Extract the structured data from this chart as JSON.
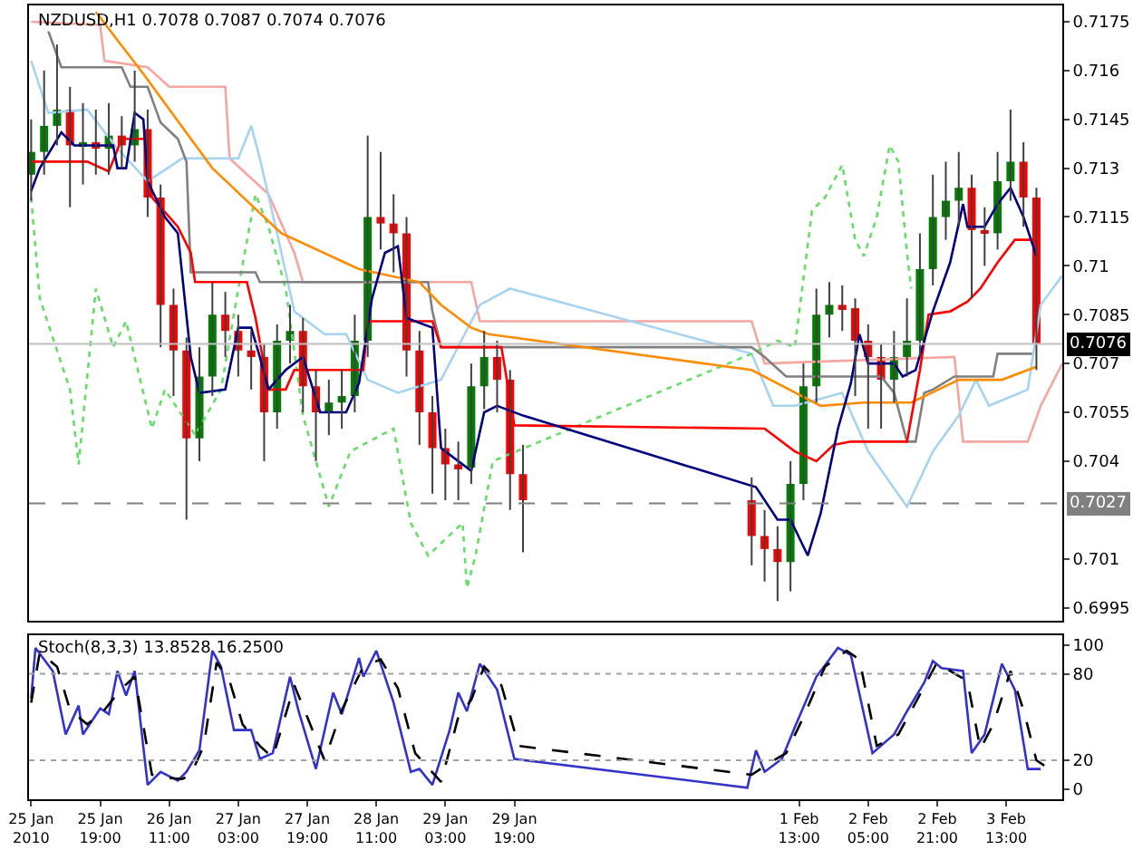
{
  "chart_data": [
    {
      "type": "candlestick",
      "title": "NZDUSD,H1 0.7078 0.7087 0.7074 0.7076",
      "x": [
        "2010-01-25T03:00",
        "2010-01-25T06:00",
        "2010-01-25T09:00",
        "2010-01-25T12:00",
        "2010-01-25T15:00",
        "2010-01-25T18:00",
        "2010-01-25T21:00",
        "2010-01-26T00:00",
        "2010-01-26T03:00",
        "2010-01-26T06:00",
        "2010-01-26T09:00",
        "2010-01-26T12:00",
        "2010-01-26T15:00",
        "2010-01-26T18:00",
        "2010-01-26T21:00",
        "2010-01-27T00:00",
        "2010-01-27T03:00",
        "2010-01-27T06:00",
        "2010-01-27T09:00",
        "2010-01-27T12:00",
        "2010-01-27T15:00",
        "2010-01-27T18:00",
        "2010-01-27T21:00",
        "2010-01-28T00:00",
        "2010-01-28T03:00",
        "2010-01-28T06:00",
        "2010-01-28T09:00",
        "2010-01-28T12:00",
        "2010-01-28T15:00",
        "2010-01-28T18:00",
        "2010-01-28T21:00",
        "2010-01-29T00:00",
        "2010-01-29T03:00",
        "2010-01-29T06:00",
        "2010-01-29T09:00",
        "2010-01-29T12:00",
        "2010-01-29T15:00",
        "2010-01-29T18:00",
        "2010-01-29T21:00",
        "2010-02-01T02:00",
        "2010-02-01T05:00",
        "2010-02-01T08:00",
        "2010-02-01T11:00",
        "2010-02-01T14:00",
        "2010-02-01T17:00",
        "2010-02-01T20:00",
        "2010-02-01T23:00",
        "2010-02-02T02:00",
        "2010-02-02T05:00",
        "2010-02-02T08:00",
        "2010-02-02T11:00",
        "2010-02-02T14:00",
        "2010-02-02T17:00",
        "2010-02-02T20:00",
        "2010-02-02T23:00",
        "2010-02-03T02:00",
        "2010-02-03T05:00",
        "2010-02-03T08:00",
        "2010-02-03T11:00",
        "2010-02-03T14:00",
        "2010-02-03T17:00",
        "2010-02-03T20:00"
      ],
      "ohlc": [
        [
          0.7128,
          0.7145,
          0.712,
          0.7135
        ],
        [
          0.7135,
          0.716,
          0.7128,
          0.7143
        ],
        [
          0.7143,
          0.7168,
          0.7137,
          0.7148
        ],
        [
          0.7148,
          0.7155,
          0.7118,
          0.7137
        ],
        [
          0.7137,
          0.715,
          0.7125,
          0.7138
        ],
        [
          0.7138,
          0.7148,
          0.7128,
          0.7136
        ],
        [
          0.7136,
          0.715,
          0.7128,
          0.714
        ],
        [
          0.714,
          0.7146,
          0.713,
          0.7137
        ],
        [
          0.7137,
          0.716,
          0.7132,
          0.7142
        ],
        [
          0.7142,
          0.7148,
          0.7115,
          0.7121
        ],
        [
          0.7121,
          0.7125,
          0.7075,
          0.7088
        ],
        [
          0.7088,
          0.7093,
          0.706,
          0.7074
        ],
        [
          0.7074,
          0.7078,
          0.7022,
          0.7047
        ],
        [
          0.7047,
          0.7075,
          0.704,
          0.7066
        ],
        [
          0.7066,
          0.7095,
          0.706,
          0.7085
        ],
        [
          0.7085,
          0.7092,
          0.7072,
          0.708
        ],
        [
          0.708,
          0.7085,
          0.7066,
          0.7074
        ],
        [
          0.7074,
          0.708,
          0.7062,
          0.7072
        ],
        [
          0.7072,
          0.7076,
          0.704,
          0.7055
        ],
        [
          0.7055,
          0.7082,
          0.705,
          0.7077
        ],
        [
          0.7077,
          0.7088,
          0.707,
          0.708
        ],
        [
          0.708,
          0.7084,
          0.7055,
          0.7063
        ],
        [
          0.7063,
          0.7068,
          0.704,
          0.7055
        ],
        [
          0.7055,
          0.7065,
          0.7048,
          0.7058
        ],
        [
          0.7058,
          0.7068,
          0.705,
          0.706
        ],
        [
          0.706,
          0.7085,
          0.7055,
          0.7077
        ],
        [
          0.7077,
          0.714,
          0.7072,
          0.7115
        ],
        [
          0.7115,
          0.7135,
          0.7105,
          0.7113
        ],
        [
          0.7113,
          0.7122,
          0.7098,
          0.711
        ],
        [
          0.711,
          0.7115,
          0.7066,
          0.7074
        ],
        [
          0.7074,
          0.708,
          0.7045,
          0.7055
        ],
        [
          0.7055,
          0.706,
          0.703,
          0.7044
        ],
        [
          0.7044,
          0.705,
          0.7028,
          0.7039
        ],
        [
          0.7039,
          0.7046,
          0.7028,
          0.7038
        ],
        [
          0.7038,
          0.707,
          0.7033,
          0.7063
        ],
        [
          0.7063,
          0.708,
          0.7056,
          0.7072
        ],
        [
          0.7072,
          0.7077,
          0.7055,
          0.7065
        ],
        [
          0.7065,
          0.7068,
          0.7025,
          0.7036
        ],
        [
          0.7036,
          0.7045,
          0.7012,
          0.7028
        ],
        [
          0.7028,
          0.7035,
          0.7008,
          0.7017
        ],
        [
          0.7017,
          0.7025,
          0.7003,
          0.7013
        ],
        [
          0.7013,
          0.702,
          0.6997,
          0.7009
        ],
        [
          0.7009,
          0.704,
          0.7,
          0.7033
        ],
        [
          0.7033,
          0.707,
          0.7028,
          0.7063
        ],
        [
          0.7063,
          0.7093,
          0.7058,
          0.7085
        ],
        [
          0.7085,
          0.7095,
          0.7078,
          0.7088
        ],
        [
          0.7088,
          0.7094,
          0.708,
          0.7087
        ],
        [
          0.7087,
          0.709,
          0.706,
          0.7077
        ],
        [
          0.7077,
          0.7082,
          0.705,
          0.7072
        ],
        [
          0.7072,
          0.7076,
          0.705,
          0.7065
        ],
        [
          0.7065,
          0.708,
          0.7058,
          0.7072
        ],
        [
          0.7072,
          0.709,
          0.7066,
          0.7077
        ],
        [
          0.7077,
          0.711,
          0.7072,
          0.7099
        ],
        [
          0.7099,
          0.7128,
          0.7094,
          0.7115
        ],
        [
          0.7115,
          0.7132,
          0.7108,
          0.712
        ],
        [
          0.712,
          0.7135,
          0.7112,
          0.7124
        ],
        [
          0.7124,
          0.7128,
          0.709,
          0.7111
        ],
        [
          0.7111,
          0.7118,
          0.71,
          0.711
        ],
        [
          0.711,
          0.7135,
          0.7105,
          0.7126
        ],
        [
          0.7126,
          0.7148,
          0.712,
          0.7132
        ],
        [
          0.7132,
          0.7138,
          0.7112,
          0.7121
        ],
        [
          0.7121,
          0.7124,
          0.7068,
          0.7076
        ]
      ],
      "colors": [
        "#008000",
        "#008000",
        "#008000",
        "#ff0000",
        "#008000",
        "#ff0000",
        "#008000",
        "#ff0000",
        "#008000",
        "#ff0000",
        "#ff0000",
        "#ff0000",
        "#ff0000",
        "#008000",
        "#008000",
        "#ff0000",
        "#ff0000",
        "#ff0000",
        "#ff0000",
        "#008000",
        "#008000",
        "#ff0000",
        "#ff0000",
        "#008000",
        "#008000",
        "#008000",
        "#008000",
        "#ff0000",
        "#ff0000",
        "#ff0000",
        "#ff0000",
        "#ff0000",
        "#ff0000",
        "#ff0000",
        "#008000",
        "#008000",
        "#ff0000",
        "#ff0000",
        "#ff0000",
        "#ff0000",
        "#ff0000",
        "#ff0000",
        "#008000",
        "#008000",
        "#008000",
        "#008000",
        "#ff0000",
        "#ff0000",
        "#ff0000",
        "#ff0000",
        "#008000",
        "#008000",
        "#008000",
        "#008000",
        "#008000",
        "#008000",
        "#ff0000",
        "#ff0000",
        "#008000",
        "#008000",
        "#ff0000",
        "#ff0000"
      ],
      "series": [
        {
          "type": "line",
          "color": "#f4a6a0",
          "x": [
            "2010-01-25T03:00",
            "2010-01-25T19:00",
            "2010-01-25T20:00",
            "2010-01-26T06:00",
            "2010-01-26T11:00",
            "2010-01-27T00:00",
            "2010-01-27T01:00",
            "2010-01-27T10:00",
            "2010-01-27T16:00",
            "2010-01-27T18:00",
            "2010-01-29T09:00",
            "2010-01-29T11:00",
            "2010-02-01T02:00",
            "2010-02-01T05:00",
            "2010-02-03T01:00",
            "2010-02-03T03:00",
            "2010-02-03T18:00",
            "2010-02-03T21:00",
            "2010-02-04T02:00"
          ],
          "values": [
            0.7175,
            0.7174,
            0.7163,
            0.7161,
            0.7155,
            0.7155,
            0.7133,
            0.7122,
            0.7104,
            0.7095,
            0.7095,
            0.7083,
            0.7083,
            0.707,
            0.7072,
            0.7046,
            0.7046,
            0.7057,
            0.707
          ]
        },
        {
          "type": "line",
          "color": "#a6d4f0",
          "x": [
            "2010-01-25T03:00",
            "2010-01-25T07:00",
            "2010-01-25T16:00",
            "2010-01-25T23:00",
            "2010-01-26T06:00",
            "2010-01-26T14:00",
            "2010-01-27T03:00",
            "2010-01-27T06:00",
            "2010-01-27T08:00",
            "2010-01-27T12:00",
            "2010-01-27T16:00",
            "2010-01-27T23:00",
            "2010-01-28T04:00",
            "2010-01-28T09:00",
            "2010-01-28T16:00",
            "2010-01-29T02:00",
            "2010-01-29T11:00",
            "2010-01-29T18:00",
            "2010-02-01T02:00",
            "2010-02-01T07:00",
            "2010-02-01T12:00",
            "2010-02-01T23:00",
            "2010-02-02T05:00",
            "2010-02-02T14:00",
            "2010-02-02T20:00",
            "2010-02-03T02:00",
            "2010-02-03T06:00",
            "2010-02-03T09:00",
            "2010-02-03T18:00",
            "2010-02-03T21:00",
            "2010-02-04T02:00"
          ],
          "values": [
            0.7163,
            0.7147,
            0.7148,
            0.7136,
            0.7126,
            0.7133,
            0.7133,
            0.7143,
            0.7133,
            0.711,
            0.7086,
            0.7079,
            0.7079,
            0.7065,
            0.7061,
            0.7065,
            0.7088,
            0.7093,
            0.7073,
            0.7057,
            0.7057,
            0.7061,
            0.7043,
            0.7026,
            0.7043,
            0.7054,
            0.7065,
            0.7057,
            0.7062,
            0.7088,
            0.7097
          ]
        },
        {
          "type": "line",
          "color": "#66dd66",
          "line_style": "dotted",
          "x": [
            "2010-01-25T03:00",
            "2010-01-25T05:00",
            "2010-01-25T12:00",
            "2010-01-25T14:00",
            "2010-01-25T18:00",
            "2010-01-25T22:00",
            "2010-01-26T01:00",
            "2010-01-26T07:00",
            "2010-01-26T10:00",
            "2010-01-26T17:00",
            "2010-01-26T23:00",
            "2010-01-27T03:00",
            "2010-01-27T07:00",
            "2010-01-27T10:00",
            "2010-01-27T14:00",
            "2010-01-27T18:00",
            "2010-01-28T00:00",
            "2010-01-28T05:00",
            "2010-01-28T15:00",
            "2010-01-28T19:00",
            "2010-01-28T23:00",
            "2010-01-29T07:00",
            "2010-01-29T08:00",
            "2010-01-29T10:00",
            "2010-01-29T14:00",
            "2010-02-01T02:00",
            "2010-02-01T08:00",
            "2010-02-01T12:00",
            "2010-02-01T16:00",
            "2010-02-01T19:00",
            "2010-02-01T23:00",
            "2010-02-02T02:00",
            "2010-02-02T04:00",
            "2010-02-02T07:00",
            "2010-02-02T10:00",
            "2010-02-02T12:00",
            "2010-02-02T14:00",
            "2010-02-02T15:00"
          ],
          "values": [
            0.7121,
            0.709,
            0.7062,
            0.7039,
            0.7093,
            0.7075,
            0.7083,
            0.705,
            0.7062,
            0.7048,
            0.7062,
            0.7093,
            0.7122,
            0.7112,
            0.7093,
            0.7054,
            0.7026,
            0.7043,
            0.705,
            0.7021,
            0.7011,
            0.7021,
            0.7001,
            0.7011,
            0.704,
            0.7073,
            0.7077,
            0.7075,
            0.7117,
            0.7121,
            0.7131,
            0.7108,
            0.7103,
            0.7115,
            0.7137,
            0.7132,
            0.7104,
            0.7093
          ]
        },
        {
          "type": "line",
          "color": "#808080",
          "x": [
            "2010-01-25T07:00",
            "2010-01-25T10:00",
            "2010-01-26T00:00",
            "2010-01-26T02:00",
            "2010-01-26T06:00",
            "2010-01-26T09:00",
            "2010-01-26T13:00",
            "2010-01-26T15:00",
            "2010-01-26T16:00",
            "2010-01-27T07:00",
            "2010-01-27T08:00",
            "2010-01-28T23:00",
            "2010-01-29T00:00",
            "2010-01-29T02:00",
            "2010-02-01T02:00",
            "2010-02-01T05:00",
            "2010-02-01T10:00",
            "2010-02-02T08:00",
            "2010-02-02T11:00",
            "2010-02-02T14:00",
            "2010-02-02T16:00",
            "2010-02-02T18:00",
            "2010-02-02T20:00",
            "2010-02-03T01:00",
            "2010-02-03T10:00",
            "2010-02-03T11:00",
            "2010-02-03T19:00"
          ],
          "values": [
            0.7172,
            0.7161,
            0.7161,
            0.7155,
            0.7155,
            0.7144,
            0.7139,
            0.7132,
            0.7098,
            0.7098,
            0.7095,
            0.7095,
            0.7086,
            0.7075,
            0.7075,
            0.7072,
            0.7066,
            0.7066,
            0.7061,
            0.7046,
            0.7046,
            0.7061,
            0.7062,
            0.7066,
            0.7066,
            0.7073,
            0.7073
          ]
        },
        {
          "type": "line",
          "color": "#ff8c00",
          "x": [
            "2010-01-25T18:00",
            "2010-01-26T05:00",
            "2010-01-26T21:00",
            "2010-01-27T13:00",
            "2010-01-28T07:00",
            "2010-01-28T21:00",
            "2010-01-29T02:00",
            "2010-01-29T09:00",
            "2010-01-29T13:00",
            "2010-02-01T02:00",
            "2010-02-01T18:00",
            "2010-02-02T04:00",
            "2010-02-02T15:00",
            "2010-02-03T02:00",
            "2010-02-03T12:00",
            "2010-02-03T20:00"
          ],
          "values": [
            0.7178,
            0.7159,
            0.713,
            0.711,
            0.7099,
            0.7095,
            0.7088,
            0.7081,
            0.7079,
            0.7068,
            0.7057,
            0.7058,
            0.7058,
            0.7065,
            0.7065,
            0.7069
          ]
        },
        {
          "type": "line",
          "color": "#ff0000",
          "x": [
            "2010-01-25T03:00",
            "2010-01-25T16:00",
            "2010-01-25T21:00",
            "2010-01-26T00:00",
            "2010-01-26T06:00",
            "2010-01-26T07:00",
            "2010-01-26T13:00",
            "2010-01-26T16:00",
            "2010-01-26T17:00",
            "2010-01-27T05:00",
            "2010-01-27T07:00",
            "2010-01-27T10:00",
            "2010-01-27T14:00",
            "2010-01-27T16:00",
            "2010-01-28T08:00",
            "2010-01-28T09:00",
            "2010-01-29T00:00",
            "2010-01-29T02:00",
            "2010-01-29T16:00",
            "2010-01-29T19:00",
            "2010-02-01T05:00",
            "2010-02-01T12:00",
            "2010-02-01T17:00",
            "2010-02-01T21:00",
            "2010-02-02T01:00",
            "2010-02-02T14:00",
            "2010-02-02T17:00",
            "2010-02-02T19:00",
            "2010-02-03T00:00",
            "2010-02-03T04:00",
            "2010-02-03T07:00",
            "2010-02-03T11:00",
            "2010-02-03T15:00",
            "2010-02-03T20:00"
          ],
          "values": [
            0.7132,
            0.7132,
            0.7129,
            0.7139,
            0.7139,
            0.7121,
            0.7112,
            0.7104,
            0.7095,
            0.7095,
            0.7084,
            0.7062,
            0.7062,
            0.7068,
            0.7068,
            0.7083,
            0.7083,
            0.7075,
            0.7075,
            0.7051,
            0.705,
            0.7043,
            0.704,
            0.7045,
            0.7046,
            0.7046,
            0.7068,
            0.7085,
            0.7086,
            0.7089,
            0.7093,
            0.7101,
            0.7108,
            0.7108
          ]
        },
        {
          "type": "line",
          "color": "#000080",
          "x": [
            "2010-01-25T03:00",
            "2010-01-25T05:00",
            "2010-01-25T10:00",
            "2010-01-25T13:00",
            "2010-01-25T22:00",
            "2010-01-25T23:00",
            "2010-01-26T01:00",
            "2010-01-26T03:00",
            "2010-01-26T05:00",
            "2010-01-26T06:00",
            "2010-01-26T10:00",
            "2010-01-26T13:00",
            "2010-01-26T16:00",
            "2010-01-26T18:00",
            "2010-01-27T00:00",
            "2010-01-27T03:00",
            "2010-01-27T06:00",
            "2010-01-27T08:00",
            "2010-01-27T10:00",
            "2010-01-27T14:00",
            "2010-01-27T18:00",
            "2010-01-27T22:00",
            "2010-01-28T04:00",
            "2010-01-28T07:00",
            "2010-01-28T10:00",
            "2010-01-28T13:00",
            "2010-01-28T16:00",
            "2010-01-28T18:00",
            "2010-01-28T20:00",
            "2010-01-29T00:00",
            "2010-01-29T02:00",
            "2010-01-29T06:00",
            "2010-01-29T09:00",
            "2010-01-29T12:00",
            "2010-01-29T15:00",
            "2010-01-29T21:00",
            "2010-02-01T03:00",
            "2010-02-01T08:00",
            "2010-02-01T11:00",
            "2010-02-01T15:00",
            "2010-02-01T18:00",
            "2010-02-01T22:00",
            "2010-02-02T01:00",
            "2010-02-02T03:00",
            "2010-02-02T05:00",
            "2010-02-02T11:00",
            "2010-02-02T13:00",
            "2010-02-02T16:00",
            "2010-02-02T20:00",
            "2010-02-03T00:00",
            "2010-02-03T03:00",
            "2010-02-03T04:00",
            "2010-02-03T08:00",
            "2010-02-03T11:00",
            "2010-02-03T14:00",
            "2010-02-03T17:00",
            "2010-02-03T20:00"
          ],
          "values": [
            0.7123,
            0.713,
            0.7141,
            0.7137,
            0.7137,
            0.713,
            0.713,
            0.7147,
            0.7145,
            0.7126,
            0.7115,
            0.711,
            0.7072,
            0.7061,
            0.7062,
            0.7081,
            0.7081,
            0.7072,
            0.7062,
            0.7068,
            0.7072,
            0.7055,
            0.7055,
            0.7064,
            0.709,
            0.7104,
            0.7106,
            0.7084,
            0.7083,
            0.7081,
            0.7044,
            0.704,
            0.7037,
            0.7055,
            0.7057,
            0.7054,
            0.7032,
            0.7022,
            0.7022,
            0.7011,
            0.7024,
            0.705,
            0.7064,
            0.7079,
            0.707,
            0.707,
            0.7066,
            0.7068,
            0.7086,
            0.7101,
            0.7119,
            0.7112,
            0.7112,
            0.7119,
            0.7124,
            0.7115,
            0.7103
          ]
        }
      ],
      "xlim": [
        "2010-01-25T02:30",
        "2010-02-04T02:00"
      ],
      "ylim": [
        0.6991,
        0.718
      ],
      "yticks": [
        0.6995,
        0.701,
        0.704,
        0.7055,
        0.707,
        0.7085,
        0.71,
        0.7115,
        0.713,
        0.7145,
        0.716,
        0.7175
      ],
      "tick_labels": "y",
      "grid": false,
      "ref_lines": [
        {
          "axis": "y",
          "value": 0.7076,
          "label": "0.7076",
          "color": "#c0c0c0",
          "line_style": "solid"
        },
        {
          "axis": "y",
          "value": 0.7027,
          "label": "0.7027",
          "color": "#808080",
          "line_style": "dashed"
        }
      ]
    },
    {
      "type": "line",
      "title": "Stoch(8,3,3) 13.8528 16.2500",
      "series": [
        {
          "color": "#3333cc",
          "x": [
            "2010-01-25T03:00",
            "2010-01-25T04:00",
            "2010-01-25T08:00",
            "2010-01-25T11:00",
            "2010-01-25T14:00",
            "2010-01-25T15:00",
            "2010-01-25T19:00",
            "2010-01-25T21:00",
            "2010-01-25T23:00",
            "2010-01-26T01:00",
            "2010-01-26T03:00",
            "2010-01-26T06:00",
            "2010-01-26T09:00",
            "2010-01-26T13:00",
            "2010-01-26T15:00",
            "2010-01-26T18:00",
            "2010-01-26T21:00",
            "2010-01-26T23:00",
            "2010-01-27T02:00",
            "2010-01-27T06:00",
            "2010-01-27T08:00",
            "2010-01-27T11:00",
            "2010-01-27T15:00",
            "2010-01-27T17:00",
            "2010-01-27T21:00",
            "2010-01-28T01:00",
            "2010-01-28T03:00",
            "2010-01-28T07:00",
            "2010-01-28T08:00",
            "2010-01-28T11:00",
            "2010-01-28T15:00",
            "2010-01-28T19:00",
            "2010-01-28T21:00",
            "2010-01-29T00:00",
            "2010-01-29T04:00",
            "2010-01-29T06:00",
            "2010-01-29T08:00",
            "2010-01-29T11:00",
            "2010-01-29T15:00",
            "2010-01-29T19:00",
            "2010-02-01T01:00",
            "2010-02-01T03:00",
            "2010-02-01T05:00",
            "2010-02-01T09:00",
            "2010-02-01T12:00",
            "2010-02-01T17:00",
            "2010-02-01T22:00",
            "2010-02-02T01:00",
            "2010-02-02T06:00",
            "2010-02-02T11:00",
            "2010-02-02T14:00",
            "2010-02-02T18:00",
            "2010-02-02T20:00",
            "2010-02-02T22:00",
            "2010-02-03T03:00",
            "2010-02-03T05:00",
            "2010-02-03T08:00",
            "2010-02-03T12:00",
            "2010-02-03T15:00",
            "2010-02-03T18:00",
            "2010-02-03T21:00"
          ],
          "values": [
            63,
            98,
            82,
            38,
            58,
            38,
            56,
            52,
            82,
            65,
            82,
            3,
            12,
            6,
            12,
            27,
            96,
            85,
            41,
            41,
            21,
            25,
            78,
            54,
            14,
            67,
            52,
            91,
            78,
            96,
            60,
            12,
            14,
            3,
            41,
            67,
            54,
            87,
            69,
            21,
            1,
            27,
            12,
            21,
            43,
            78,
            98,
            93,
            25,
            38,
            54,
            74,
            89,
            84,
            82,
            25,
            38,
            87,
            69,
            14,
            14
          ]
        },
        {
          "color": "#000000",
          "line_style": "dashed",
          "x": [
            "2010-01-25T03:00",
            "2010-01-25T05:00",
            "2010-01-25T09:00",
            "2010-01-25T12:00",
            "2010-01-25T16:00",
            "2010-01-25T20:00",
            "2010-01-26T00:00",
            "2010-01-26T03:00",
            "2010-01-26T07:00",
            "2010-01-26T10:00",
            "2010-01-26T14:00",
            "2010-01-26T16:00",
            "2010-01-26T19:00",
            "2010-01-26T22:00",
            "2010-01-27T01:00",
            "2010-01-27T04:00",
            "2010-01-27T08:00",
            "2010-01-27T11:00",
            "2010-01-27T16:00",
            "2010-01-27T19:00",
            "2010-01-27T23:00",
            "2010-01-28T03:00",
            "2010-01-28T08:00",
            "2010-01-28T12:00",
            "2010-01-28T16:00",
            "2010-01-28T20:00",
            "2010-01-28T23:00",
            "2010-01-29T02:00",
            "2010-01-29T06:00",
            "2010-01-29T09:00",
            "2010-01-29T12:00",
            "2010-01-29T16:00",
            "2010-01-29T20:00",
            "2010-02-01T02:00",
            "2010-02-01T06:00",
            "2010-02-01T10:00",
            "2010-02-01T14:00",
            "2010-02-01T19:00",
            "2010-02-02T00:00",
            "2010-02-02T03:00",
            "2010-02-02T07:00",
            "2010-02-02T12:00",
            "2010-02-02T16:00",
            "2010-02-02T21:00",
            "2010-02-03T00:00",
            "2010-02-03T04:00",
            "2010-02-03T07:00",
            "2010-02-03T10:00",
            "2010-02-03T14:00",
            "2010-02-03T17:00",
            "2010-02-03T20:00",
            "2010-02-03T22:00"
          ],
          "values": [
            60,
            95,
            85,
            55,
            45,
            55,
            70,
            78,
            10,
            8,
            7,
            10,
            30,
            88,
            75,
            45,
            30,
            22,
            72,
            50,
            20,
            55,
            85,
            90,
            70,
            25,
            15,
            5,
            50,
            62,
            85,
            72,
            30,
            10,
            18,
            25,
            50,
            85,
            96,
            90,
            30,
            38,
            60,
            88,
            82,
            75,
            28,
            45,
            82,
            55,
            20,
            16
          ]
        }
      ],
      "xlim": [
        "2010-01-25T02:30",
        "2010-02-04T02:00"
      ],
      "ylim": [
        -7,
        107
      ],
      "yticks": [
        0,
        20,
        80,
        100
      ],
      "xticks": [
        {
          "value": "2010-01-25T03:00",
          "label": "25 Jan 2010"
        },
        {
          "value": "2010-01-25T19:00",
          "label": "25 Jan 19:00"
        },
        {
          "value": "2010-01-26T11:00",
          "label": "26 Jan 11:00"
        },
        {
          "value": "2010-01-27T03:00",
          "label": "27 Jan 03:00"
        },
        {
          "value": "2010-01-27T19:00",
          "label": "27 Jan 19:00"
        },
        {
          "value": "2010-01-28T11:00",
          "label": "28 Jan 11:00"
        },
        {
          "value": "2010-01-29T03:00",
          "label": "29 Jan 03:00"
        },
        {
          "value": "2010-01-29T19:00",
          "label": "29 Jan 19:00"
        },
        {
          "value": "2010-02-01T13:00",
          "label": "1 Feb 13:00"
        },
        {
          "value": "2010-02-02T05:00",
          "label": "2 Feb 05:00"
        },
        {
          "value": "2010-02-02T21:00",
          "label": "2 Feb 21:00"
        },
        {
          "value": "2010-02-03T13:00",
          "label": "3 Feb 13:00"
        }
      ],
      "grid": false,
      "ref_lines": [
        {
          "axis": "y",
          "value": 80,
          "color": "#a0a0a0",
          "line_style": "dotted"
        },
        {
          "axis": "y",
          "value": 20,
          "color": "#a0a0a0",
          "line_style": "dotted"
        }
      ]
    }
  ]
}
